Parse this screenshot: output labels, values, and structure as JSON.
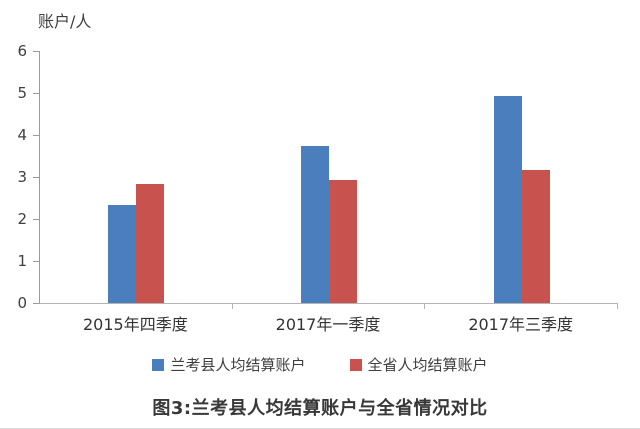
{
  "chart": {
    "caption": "图3:兰考县人均结算账户与全省情况对比",
    "colors": {
      "series_blue": "#4A7EBD",
      "series_red": "#C8524E",
      "axis_line": "#9a9a9a",
      "text": "#3f3f3f"
    }
  },
  "chart_data": {
    "type": "bar",
    "title": "",
    "xlabel": "",
    "ylabel": "账户/人",
    "ylim": [
      0,
      6
    ],
    "ytick_step": 1,
    "grid": false,
    "legend_position": "bottom",
    "categories": [
      "2015年四季度",
      "2017年一季度",
      "2017年三季度"
    ],
    "series": [
      {
        "name": "兰考县人均结算账户",
        "color": "#4A7EBD",
        "values": [
          2.33,
          3.73,
          4.92
        ]
      },
      {
        "name": "全省人均结算账户",
        "color": "#C8524E",
        "values": [
          2.83,
          2.92,
          3.16
        ]
      }
    ]
  }
}
